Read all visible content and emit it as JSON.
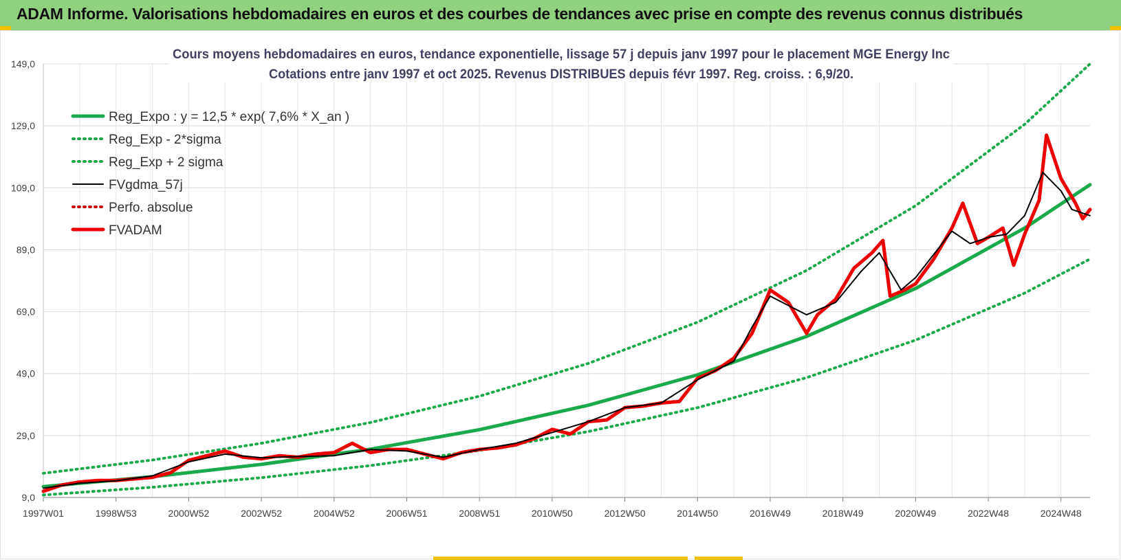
{
  "banner": {
    "title": "ADAM Informe. Valorisations hebdomadaires en euros et des courbes de tendances avec prise en compte des revenus connus distribués",
    "background": "#8fd17e"
  },
  "chart_data": {
    "type": "line",
    "title": "Cours moyens hebdomadaires en euros, tendance exponentielle, lissage 57 j depuis janv 1997 pour le placement MGE Energy Inc",
    "subtitle": "Cotations entre janv 1997 et oct 2025. Revenus DISTRIBUES depuis févr 1997. Reg. croiss. : 6,9/20.",
    "xlabel": "",
    "ylabel": "",
    "ylim": [
      9,
      149
    ],
    "yticks": [
      "9,0",
      "29,0",
      "49,0",
      "69,0",
      "89,0",
      "109,0",
      "129,0",
      "149,0"
    ],
    "xlim": [
      1997.0,
      2025.8
    ],
    "xticks": [
      {
        "label": "1997W01",
        "x": 1997.0
      },
      {
        "label": "1998W53",
        "x": 1999.0
      },
      {
        "label": "2000W52",
        "x": 2001.0
      },
      {
        "label": "2002W52",
        "x": 2003.0
      },
      {
        "label": "2004W52",
        "x": 2005.0
      },
      {
        "label": "2006W51",
        "x": 2007.0
      },
      {
        "label": "2008W51",
        "x": 2009.0
      },
      {
        "label": "2010W50",
        "x": 2011.0
      },
      {
        "label": "2012W50",
        "x": 2013.0
      },
      {
        "label": "2014W50",
        "x": 2015.0
      },
      {
        "label": "2016W49",
        "x": 2017.0
      },
      {
        "label": "2018W49",
        "x": 2019.0
      },
      {
        "label": "2020W49",
        "x": 2021.0
      },
      {
        "label": "2022W48",
        "x": 2023.0
      },
      {
        "label": "2024W48",
        "x": 2025.0
      }
    ],
    "grid": true,
    "legend_position": "top-left",
    "series": [
      {
        "name": "Reg_Expo : y = 12,5 * exp( 7,6% *  X_an )",
        "color": "#1aaa4b",
        "style": "solid-thick",
        "x": [
          1997.0,
          2000.0,
          2003.0,
          2006.0,
          2009.0,
          2012.0,
          2015.0,
          2018.0,
          2021.0,
          2024.0,
          2025.8
        ],
        "values": [
          12.5,
          15.7,
          19.7,
          24.6,
          30.9,
          38.8,
          48.6,
          61.0,
          76.5,
          96.0,
          110.0
        ]
      },
      {
        "name": "Reg_Exp - 2*sigma",
        "color": "#1aaa4b",
        "style": "dotted",
        "x": [
          1997.0,
          2000.0,
          2003.0,
          2006.0,
          2009.0,
          2012.0,
          2015.0,
          2018.0,
          2021.0,
          2024.0,
          2025.8
        ],
        "values": [
          9.8,
          12.3,
          15.4,
          19.3,
          24.2,
          30.3,
          38.0,
          47.7,
          59.8,
          75.0,
          86.0
        ]
      },
      {
        "name": "Reg_Exp + 2 sigma",
        "color": "#1aaa4b",
        "style": "dotted",
        "x": [
          1997.0,
          2000.0,
          2003.0,
          2006.0,
          2009.0,
          2012.0,
          2015.0,
          2018.0,
          2021.0,
          2024.0,
          2025.8
        ],
        "values": [
          16.8,
          21.1,
          26.5,
          33.2,
          41.7,
          52.3,
          65.6,
          82.3,
          103.2,
          129.5,
          149.0
        ]
      },
      {
        "name": "FVgdma_57j",
        "color": "#000000",
        "style": "solid",
        "x": [
          1997.0,
          1998.0,
          1999.0,
          2000.0,
          2001.0,
          2002.0,
          2003.0,
          2004.0,
          2005.0,
          2006.0,
          2007.0,
          2008.0,
          2009.0,
          2010.0,
          2011.0,
          2012.0,
          2013.0,
          2014.0,
          2015.0,
          2016.0,
          2016.5,
          2017.0,
          2018.0,
          2018.8,
          2019.5,
          2020.0,
          2020.6,
          2021.0,
          2022.0,
          2022.5,
          2023.0,
          2023.5,
          2024.0,
          2024.5,
          2025.0,
          2025.3,
          2025.8
        ],
        "values": [
          12.0,
          13.6,
          14.4,
          16.0,
          20.5,
          23.0,
          21.8,
          22.2,
          22.5,
          24.5,
          24.0,
          22.0,
          24.5,
          26.5,
          30.0,
          33.5,
          38.0,
          39.5,
          47.0,
          53.0,
          64.0,
          74.0,
          68.0,
          72.0,
          82.0,
          88.0,
          76.0,
          80.0,
          95.0,
          91.0,
          93.0,
          94.0,
          100.0,
          114.0,
          108.0,
          102.0,
          100.0
        ]
      },
      {
        "name": "Perfo. absolue",
        "color": "#cc0000",
        "style": "dotted",
        "x": [],
        "values": []
      },
      {
        "name": "FVADAM",
        "color": "#ee0000",
        "style": "solid-thick",
        "x": [
          1997.0,
          1997.5,
          1998.0,
          1998.5,
          1999.0,
          1999.5,
          2000.0,
          2000.5,
          2001.0,
          2001.5,
          2002.0,
          2002.5,
          2003.0,
          2003.5,
          2004.0,
          2004.5,
          2005.0,
          2005.5,
          2006.0,
          2006.5,
          2007.0,
          2007.5,
          2008.0,
          2008.5,
          2009.0,
          2009.5,
          2010.0,
          2010.5,
          2011.0,
          2011.5,
          2012.0,
          2012.5,
          2013.0,
          2013.5,
          2014.0,
          2014.5,
          2015.0,
          2015.5,
          2016.0,
          2016.5,
          2017.0,
          2017.5,
          2018.0,
          2018.3,
          2018.8,
          2019.3,
          2019.8,
          2020.1,
          2020.3,
          2020.7,
          2021.0,
          2021.5,
          2022.0,
          2022.3,
          2022.7,
          2023.0,
          2023.4,
          2023.7,
          2024.0,
          2024.4,
          2024.6,
          2025.0,
          2025.4,
          2025.6,
          2025.8
        ],
        "values": [
          11.0,
          13.0,
          14.0,
          14.5,
          14.5,
          15.0,
          15.5,
          17.0,
          21.0,
          22.5,
          24.0,
          22.0,
          21.5,
          22.5,
          22.0,
          23.0,
          23.5,
          26.5,
          23.5,
          24.5,
          24.5,
          23.0,
          21.5,
          23.5,
          24.5,
          25.0,
          26.0,
          28.0,
          31.0,
          29.5,
          33.5,
          34.0,
          38.0,
          38.5,
          39.5,
          40.0,
          47.5,
          50.0,
          54.0,
          62.0,
          76.0,
          72.0,
          62.0,
          68.0,
          73.0,
          83.0,
          88.0,
          92.0,
          74.0,
          76.0,
          78.0,
          86.0,
          96.0,
          104.0,
          91.0,
          93.0,
          96.0,
          84.0,
          94.0,
          105.0,
          126.0,
          112.0,
          104.0,
          99.0,
          102.0
        ]
      }
    ]
  }
}
